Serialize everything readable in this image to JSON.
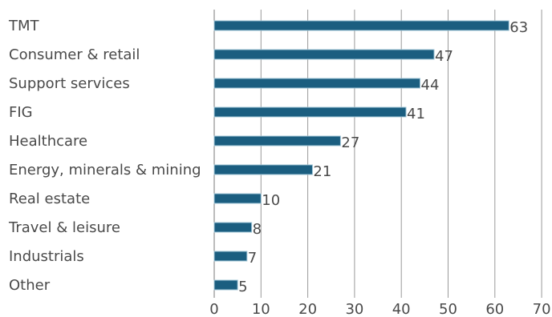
{
  "chart_data": {
    "type": "bar",
    "orientation": "horizontal",
    "title": "",
    "xlabel": "",
    "ylabel": "",
    "categories": [
      "TMT",
      "Consumer & retail",
      "Support services",
      "FIG",
      "Healthcare",
      "Energy, minerals & mining",
      "Real estate",
      "Travel & leisure",
      "Industrials",
      "Other"
    ],
    "values": [
      63,
      47,
      44,
      41,
      27,
      21,
      10,
      8,
      7,
      5
    ],
    "data_labels": [
      "63",
      "47",
      "44",
      "41",
      "27",
      "21",
      "10",
      "8",
      "7",
      "5"
    ],
    "xlim": [
      0,
      70
    ],
    "x_ticks": [
      0,
      10,
      20,
      30,
      40,
      50,
      60,
      70
    ],
    "x_tick_labels": [
      "0",
      "10",
      "20",
      "30",
      "40",
      "50",
      "60",
      "70"
    ],
    "grid": "vertical",
    "legend": "none",
    "bar_color": "#1b5e80",
    "bar_edge_color": "#9fc4d6"
  }
}
